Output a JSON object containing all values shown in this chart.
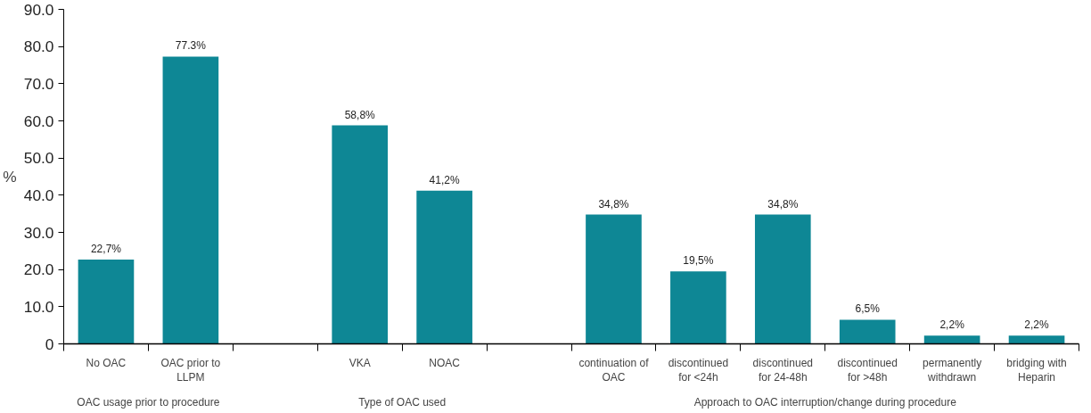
{
  "chart_data": {
    "type": "bar",
    "categories": [
      "No OAC",
      "OAC prior to\nLLPM",
      null,
      "VKA",
      "NOAC",
      null,
      "continuation of\nOAC",
      "discontinued\nfor <24h",
      "discontinued\nfor 24-48h",
      "discontinued\nfor >48h",
      "permanently\nwithdrawn",
      "bridging with\nHeparin"
    ],
    "values": [
      22.7,
      77.3,
      null,
      58.8,
      41.2,
      null,
      34.8,
      19.5,
      34.8,
      6.5,
      2.2,
      2.2
    ],
    "value_labels": [
      "22,7%",
      "77.3%",
      null,
      "58,8%",
      "41,2%",
      null,
      "34,8%",
      "19,5%",
      "34,8%",
      "6,5%",
      "2,2%",
      "2,2%"
    ],
    "color": "#0e8795",
    "ylabel": "%",
    "ylim": [
      0,
      90
    ],
    "yticks": [
      0,
      {
        "value": 10,
        "label": "10.0"
      },
      {
        "value": 20,
        "label": "20.0"
      },
      {
        "value": 30,
        "label": "30.0"
      },
      {
        "value": 40,
        "label": "40.0"
      },
      {
        "value": 50,
        "label": "50.0"
      },
      {
        "value": 60,
        "label": "60.0"
      },
      {
        "value": 70,
        "label": "70.0"
      },
      {
        "value": 80,
        "label": "80.0"
      },
      {
        "value": 90,
        "label": "90.0"
      }
    ],
    "annotations": [
      "OAC usage prior to procedure",
      "Type of OAC used",
      "Approach to OAC interruption/change during procedure"
    ],
    "grid": false
  }
}
